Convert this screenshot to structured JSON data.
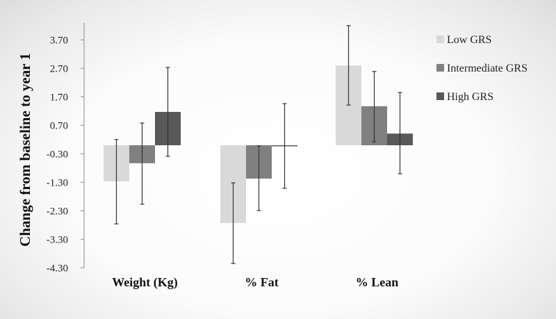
{
  "chart_data": {
    "type": "bar",
    "title": "",
    "xlabel": "",
    "ylabel": "Change from baseline to year 1",
    "ylim": [
      -4.3,
      4.3
    ],
    "yticks": [
      "3.70",
      "2.70",
      "1.70",
      "0.70",
      "-0.30",
      "-1.30",
      "-2.30",
      "-3.30",
      "-4.30"
    ],
    "grid": false,
    "legend_position": "right",
    "categories": [
      "Weight (Kg)",
      "% Fat",
      "% Lean"
    ],
    "series": [
      {
        "name": "Low GRS",
        "color": "#d9d9d9",
        "values": [
          -1.27,
          -2.73,
          2.8
        ],
        "error_upper": [
          0.2,
          -1.32,
          4.2
        ],
        "error_lower": [
          -2.76,
          -4.15,
          1.41
        ]
      },
      {
        "name": "Intermediate GRS",
        "color": "#808080",
        "values": [
          -0.63,
          -1.17,
          1.37
        ],
        "error_upper": [
          0.78,
          -0.02,
          2.59
        ],
        "error_lower": [
          -2.07,
          -2.29,
          0.12
        ]
      },
      {
        "name": "High GRS",
        "color": "#595959",
        "values": [
          1.17,
          -0.02,
          0.41
        ],
        "error_upper": [
          2.73,
          1.46,
          1.85
        ],
        "error_lower": [
          -0.39,
          -1.51,
          -1.0
        ]
      }
    ]
  }
}
